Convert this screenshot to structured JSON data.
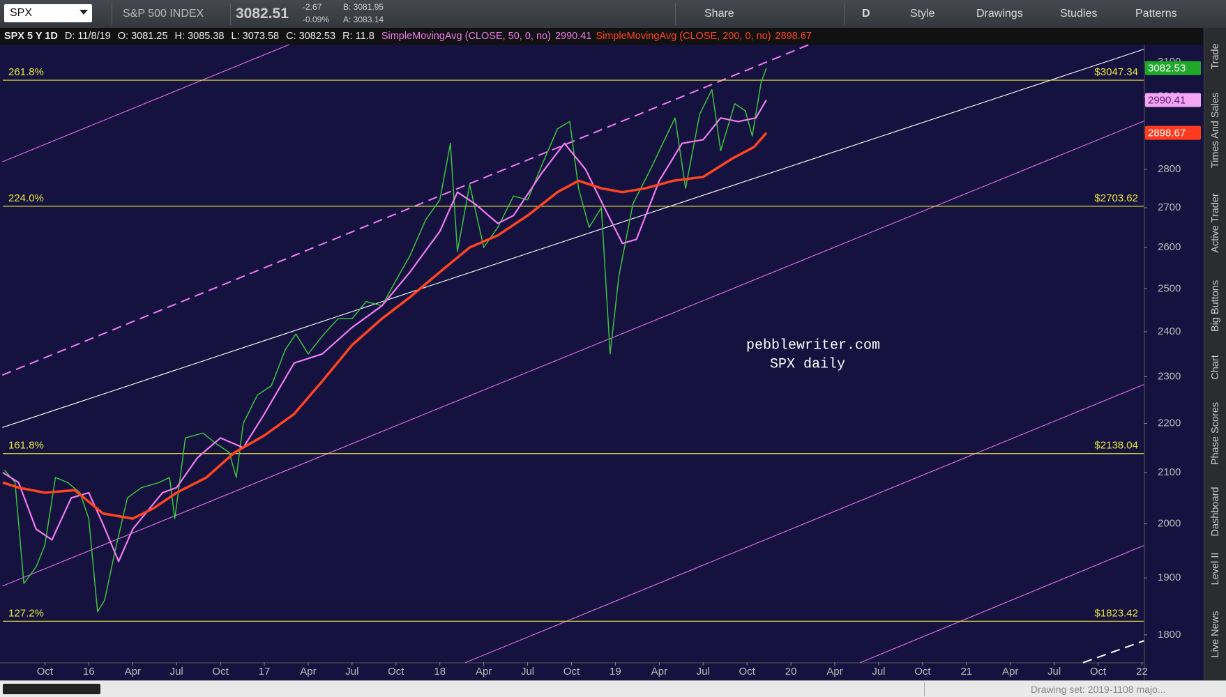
{
  "toolbar": {
    "symbol": "SPX",
    "description": "S&P 500 INDEX",
    "last": "3082.51",
    "change": "-2.67",
    "change_pct": "-0.09%",
    "bid": "B: 3081.95",
    "ask": "A: 3083.14",
    "share": "Share",
    "aggregation": "D",
    "style": "Style",
    "drawings": "Drawings",
    "studies": "Studies",
    "patterns": "Patterns"
  },
  "info_bar": {
    "symbol": "SPX 5 Y 1D",
    "date": "D: 11/8/19",
    "open": "O: 3081.25",
    "high": "H: 3085.38",
    "low": "L: 3073.58",
    "close": "C: 3082.53",
    "range": "R: 11.8"
  },
  "side_tabs": [
    "Trade",
    "Times And Sales",
    "Active Trader",
    "Big Buttons",
    "Chart",
    "Phase Scores",
    "Dashboard",
    "Level II",
    "Live News"
  ],
  "status_bar": {
    "drawing_set": "Drawing set: 2019-1108 majo..."
  },
  "chart_data": {
    "type": "line",
    "log_y": true,
    "grid": false,
    "annotation": [
      "pebblewriter.com",
      "SPX daily"
    ],
    "xlim": [
      2015.51,
      2022.01
    ],
    "xticks": [
      {
        "value": 2015.75,
        "label": "Oct"
      },
      {
        "value": 2016,
        "label": "16"
      },
      {
        "value": 2016.25,
        "label": "Apr"
      },
      {
        "value": 2016.5,
        "label": "Jul"
      },
      {
        "value": 2016.75,
        "label": "Oct"
      },
      {
        "value": 2017,
        "label": "17"
      },
      {
        "value": 2017.25,
        "label": "Apr"
      },
      {
        "value": 2017.5,
        "label": "Jul"
      },
      {
        "value": 2017.75,
        "label": "Oct"
      },
      {
        "value": 2018,
        "label": "18"
      },
      {
        "value": 2018.25,
        "label": "Apr"
      },
      {
        "value": 2018.5,
        "label": "Jul"
      },
      {
        "value": 2018.75,
        "label": "Oct"
      },
      {
        "value": 2019,
        "label": "19"
      },
      {
        "value": 2019.25,
        "label": "Apr"
      },
      {
        "value": 2019.5,
        "label": "Jul"
      },
      {
        "value": 2019.75,
        "label": "Oct"
      },
      {
        "value": 2020,
        "label": "20"
      },
      {
        "value": 2020.25,
        "label": "Apr"
      },
      {
        "value": 2020.5,
        "label": "Jul"
      },
      {
        "value": 2020.75,
        "label": "Oct"
      },
      {
        "value": 2021,
        "label": "21"
      },
      {
        "value": 2021.25,
        "label": "Apr"
      },
      {
        "value": 2021.5,
        "label": "Jul"
      },
      {
        "value": 2021.75,
        "label": "Oct"
      },
      {
        "value": 2022,
        "label": "22"
      }
    ],
    "ylim": [
      1754,
      3152
    ],
    "yticks": [
      1800,
      1900,
      2000,
      2100,
      2200,
      2300,
      2400,
      2500,
      2600,
      2700,
      2800,
      2900,
      3000,
      3100
    ],
    "levels": {
      "color": "#e6e640",
      "labels": [
        "261.8%",
        "224.0%",
        "161.8%",
        "127.2%"
      ],
      "values": [
        3047.34,
        2703.62,
        2138.04,
        1823.42
      ],
      "value_labels": [
        "$3047.34",
        "$2703.62",
        "$2138.04",
        "$1823.42"
      ]
    },
    "series": [
      {
        "name": "SPX 5 Y 1D",
        "color": "#3cc43c",
        "badge_color": "#1fa82a",
        "badge_text": "#ffffff",
        "x": [
          2015.52,
          2015.58,
          2015.63,
          2015.7,
          2015.75,
          2015.81,
          2015.88,
          2015.95,
          2016.0,
          2016.05,
          2016.09,
          2016.15,
          2016.22,
          2016.3,
          2016.4,
          2016.46,
          2016.49,
          2016.55,
          2016.65,
          2016.72,
          2016.8,
          2016.84,
          2016.88,
          2016.96,
          2017.04,
          2017.12,
          2017.18,
          2017.25,
          2017.33,
          2017.42,
          2017.5,
          2017.58,
          2017.67,
          2017.75,
          2017.83,
          2017.92,
          2018.0,
          2018.06,
          2018.1,
          2018.17,
          2018.25,
          2018.33,
          2018.42,
          2018.5,
          2018.58,
          2018.67,
          2018.74,
          2018.79,
          2018.85,
          2018.92,
          2018.97,
          2019.02,
          2019.1,
          2019.2,
          2019.3,
          2019.34,
          2019.4,
          2019.48,
          2019.55,
          2019.6,
          2019.68,
          2019.74,
          2019.78,
          2019.83,
          2019.86
        ],
        "values": [
          2105,
          2080,
          1890,
          1920,
          1960,
          2090,
          2080,
          2060,
          2010,
          1840,
          1860,
          1950,
          2050,
          2070,
          2080,
          2090,
          2010,
          2170,
          2180,
          2160,
          2140,
          2090,
          2200,
          2260,
          2280,
          2360,
          2395,
          2350,
          2390,
          2430,
          2430,
          2470,
          2460,
          2520,
          2580,
          2670,
          2720,
          2870,
          2590,
          2760,
          2600,
          2650,
          2730,
          2720,
          2810,
          2910,
          2930,
          2750,
          2650,
          2700,
          2350,
          2530,
          2710,
          2800,
          2900,
          2940,
          2750,
          2950,
          3020,
          2850,
          2980,
          2960,
          2890,
          3040,
          3082.53
        ]
      },
      {
        "name": "SimpleMovingAvg (CLOSE, 50, 0, no)",
        "color": "#f07cf0",
        "badge_color": "#f4a6f4",
        "badge_text": "#5a1a6a",
        "x": [
          2015.51,
          2015.6,
          2015.7,
          2015.79,
          2015.9,
          2016.0,
          2016.08,
          2016.17,
          2016.25,
          2016.42,
          2016.5,
          2016.62,
          2016.75,
          2016.88,
          2017.0,
          2017.17,
          2017.33,
          2017.5,
          2017.67,
          2017.83,
          2018.0,
          2018.1,
          2018.2,
          2018.33,
          2018.42,
          2018.58,
          2018.71,
          2018.83,
          2018.96,
          2019.04,
          2019.12,
          2019.25,
          2019.38,
          2019.5,
          2019.6,
          2019.7,
          2019.8,
          2019.86
        ],
        "values": [
          2100,
          2080,
          1990,
          1970,
          2050,
          2060,
          2000,
          1930,
          1990,
          2060,
          2070,
          2130,
          2170,
          2150,
          2220,
          2330,
          2350,
          2410,
          2460,
          2540,
          2640,
          2740,
          2710,
          2660,
          2680,
          2790,
          2870,
          2800,
          2680,
          2610,
          2620,
          2770,
          2870,
          2880,
          2940,
          2930,
          2940,
          2990.41
        ]
      },
      {
        "name": "SimpleMovingAvg (CLOSE, 200, 0, no)",
        "color": "#ff4422",
        "badge_color": "#ff3a1e",
        "badge_text": "#ffffff",
        "x": [
          2015.51,
          2015.6,
          2015.75,
          2015.92,
          2016.08,
          2016.25,
          2016.37,
          2016.5,
          2016.67,
          2016.83,
          2017.0,
          2017.17,
          2017.33,
          2017.5,
          2017.67,
          2017.83,
          2018.0,
          2018.17,
          2018.33,
          2018.5,
          2018.67,
          2018.79,
          2018.92,
          2019.04,
          2019.17,
          2019.33,
          2019.5,
          2019.67,
          2019.79,
          2019.86
        ],
        "values": [
          2080,
          2070,
          2060,
          2065,
          2020,
          2010,
          2030,
          2060,
          2090,
          2140,
          2175,
          2220,
          2290,
          2370,
          2430,
          2480,
          2540,
          2600,
          2630,
          2680,
          2740,
          2770,
          2750,
          2740,
          2750,
          2770,
          2780,
          2830,
          2860,
          2898.67
        ]
      }
    ]
  }
}
